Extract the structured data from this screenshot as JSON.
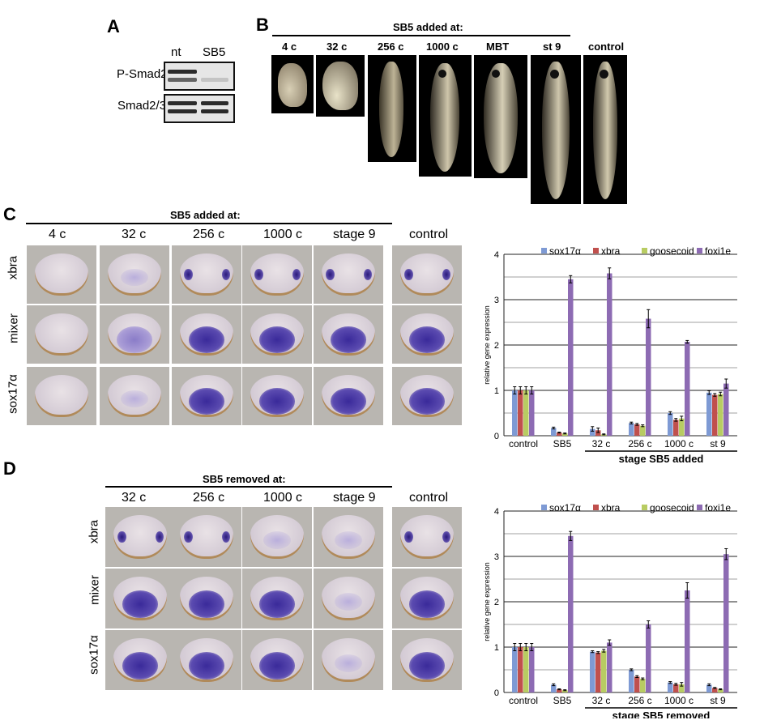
{
  "panelA": {
    "label": "A",
    "cols": [
      "nt",
      "SB5"
    ],
    "rows": [
      "P-Smad2",
      "Smad2/3"
    ]
  },
  "panelB": {
    "label": "B",
    "title": "SB5 added at:",
    "cols": [
      "4 c",
      "32 c",
      "256 c",
      "1000 c",
      "MBT",
      "st 9",
      "control"
    ]
  },
  "panelC": {
    "label": "C",
    "title": "SB5 added at:",
    "cols": [
      "4 c",
      "32 c",
      "256 c",
      "1000 c",
      "stage 9",
      "control"
    ],
    "rows": [
      "xbra",
      "mixer",
      "sox17α"
    ]
  },
  "panelD": {
    "label": "D",
    "title": "SB5 removed at:",
    "cols": [
      "32 c",
      "256 c",
      "1000 c",
      "stage 9",
      "control"
    ],
    "rows": [
      "xbra",
      "mixer",
      "sox17α"
    ]
  },
  "chart_data": [
    {
      "type": "bar",
      "panel": "C",
      "ylabel": "relative gene expression",
      "xlabel": "stage SB5 added",
      "ylim": [
        0,
        4
      ],
      "yticks": [
        0,
        1,
        2,
        3,
        4
      ],
      "categories": [
        "control",
        "SB5",
        "32 c",
        "256 c",
        "1000 c",
        "st 9"
      ],
      "legend_position": "top",
      "series": [
        {
          "name": "sox17α",
          "color": "#7e9ad4",
          "values": [
            1.0,
            0.17,
            0.15,
            0.28,
            0.5,
            0.95
          ],
          "errors": [
            0.08,
            0.02,
            0.05,
            0.02,
            0.03,
            0.04
          ]
        },
        {
          "name": "xbra",
          "color": "#c0504d",
          "values": [
            1.0,
            0.07,
            0.12,
            0.25,
            0.35,
            0.9
          ],
          "errors": [
            0.08,
            0.01,
            0.05,
            0.02,
            0.03,
            0.03
          ]
        },
        {
          "name": "goosecoid",
          "color": "#b8cc62",
          "values": [
            1.0,
            0.05,
            0.03,
            0.22,
            0.38,
            0.92
          ],
          "errors": [
            0.08,
            0.01,
            0.01,
            0.02,
            0.05,
            0.04
          ]
        },
        {
          "name": "foxi1e",
          "color": "#8d6bb3",
          "values": [
            1.0,
            3.45,
            3.58,
            2.58,
            2.07,
            1.15
          ],
          "errors": [
            0.08,
            0.08,
            0.12,
            0.2,
            0.03,
            0.1
          ]
        }
      ]
    },
    {
      "type": "bar",
      "panel": "D",
      "ylabel": "relative gene expression",
      "xlabel": "stage SB5 removed",
      "ylim": [
        0,
        4
      ],
      "yticks": [
        0,
        1,
        2,
        3,
        4
      ],
      "categories": [
        "control",
        "SB5",
        "32 c",
        "256 c",
        "1000 c",
        "st 9"
      ],
      "legend_position": "top",
      "series": [
        {
          "name": "sox17α",
          "color": "#7e9ad4",
          "values": [
            1.0,
            0.17,
            0.9,
            0.5,
            0.22,
            0.17
          ],
          "errors": [
            0.08,
            0.02,
            0.02,
            0.02,
            0.02,
            0.02
          ]
        },
        {
          "name": "xbra",
          "color": "#c0504d",
          "values": [
            1.0,
            0.07,
            0.88,
            0.35,
            0.18,
            0.1
          ],
          "errors": [
            0.08,
            0.01,
            0.02,
            0.02,
            0.02,
            0.01
          ]
        },
        {
          "name": "goosecoid",
          "color": "#b8cc62",
          "values": [
            1.0,
            0.05,
            0.92,
            0.3,
            0.18,
            0.07
          ],
          "errors": [
            0.08,
            0.01,
            0.03,
            0.02,
            0.04,
            0.01
          ]
        },
        {
          "name": "foxi1e",
          "color": "#8d6bb3",
          "values": [
            1.0,
            3.45,
            1.1,
            1.5,
            2.25,
            3.05
          ],
          "errors": [
            0.08,
            0.1,
            0.06,
            0.08,
            0.17,
            0.12
          ]
        }
      ]
    }
  ]
}
